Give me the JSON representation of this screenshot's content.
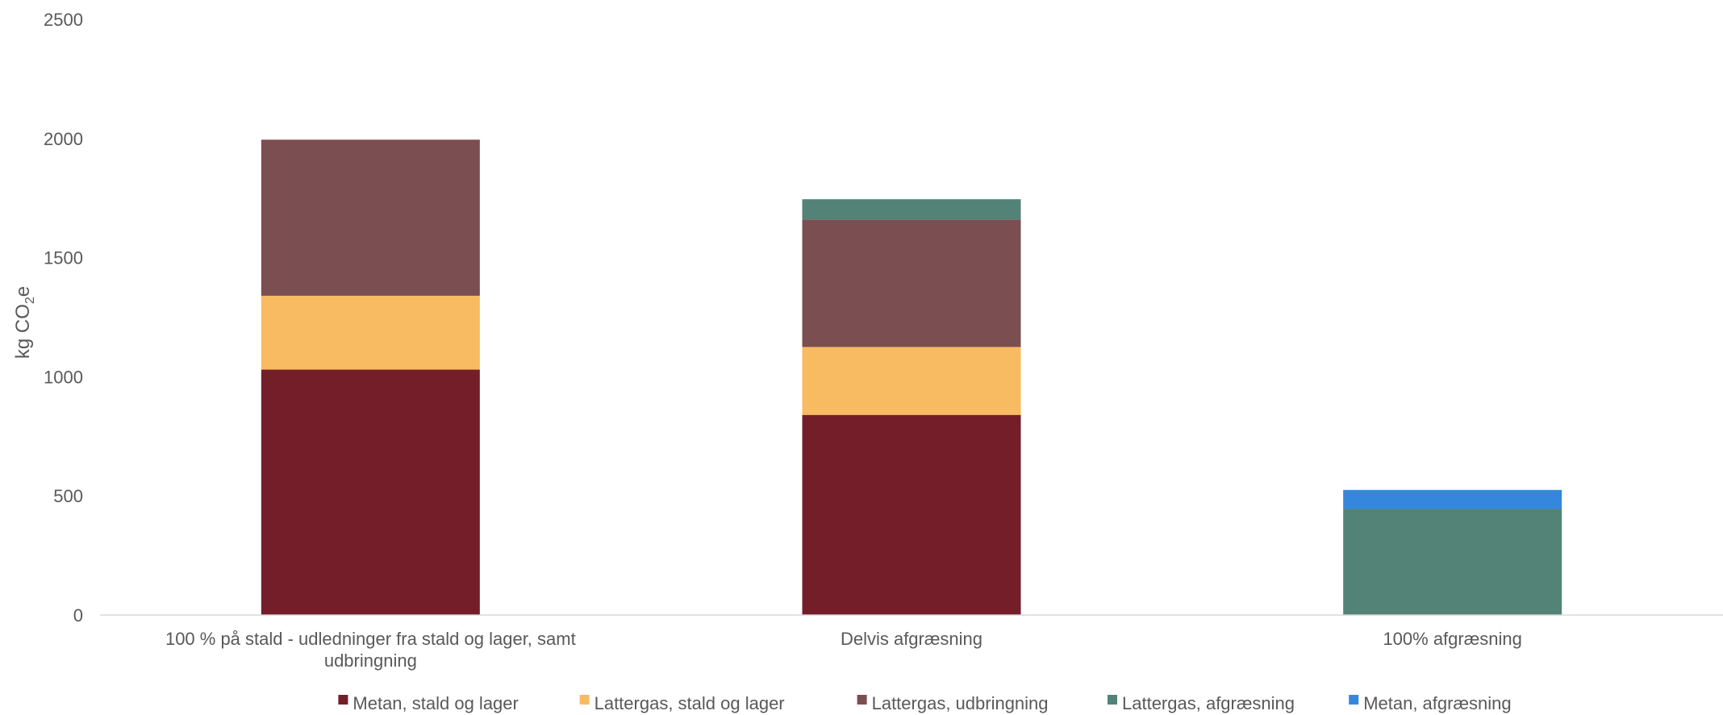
{
  "chart_data": {
    "type": "bar",
    "stacked": true,
    "categories": [
      [
        "100 % på stald - udledninger fra stald og lager, samt",
        "udbringning"
      ],
      [
        "Delvis afgræsning"
      ],
      [
        "100% afgræsning"
      ]
    ],
    "series": [
      {
        "name": "Metan, stald og lager",
        "color": "#741e29",
        "values": [
          1030,
          840,
          0
        ]
      },
      {
        "name": "Lattergas, stald og lager",
        "color": "#f8bb61",
        "values": [
          310,
          285,
          0
        ]
      },
      {
        "name": "Lattergas, udbringning",
        "color": "#7b4e51",
        "values": [
          655,
          535,
          0
        ]
      },
      {
        "name": "Lattergas, afgræsning",
        "color": "#528376",
        "values": [
          0,
          85,
          445
        ]
      },
      {
        "name": "Metan, afgræsning",
        "color": "#3487dc",
        "values": [
          0,
          0,
          80
        ]
      }
    ],
    "ylabel": {
      "main": "kg CO",
      "sub": "2",
      "suffix": "e"
    },
    "ylim": [
      0,
      2500
    ],
    "yticks": [
      0,
      500,
      1000,
      1500,
      2000,
      2500
    ],
    "grid": false,
    "legend": "bottom"
  }
}
